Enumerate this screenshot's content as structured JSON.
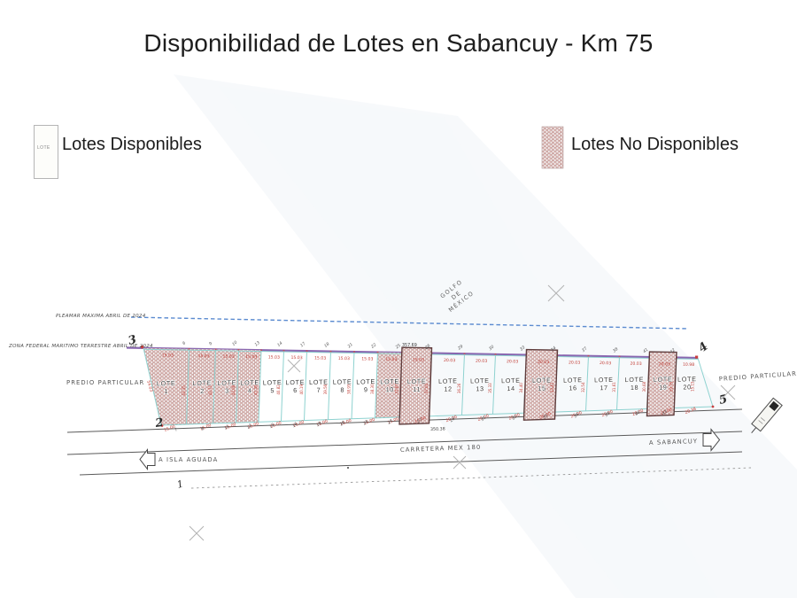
{
  "title": "Disponibilidad de Lotes en Sabancuy - Km 75",
  "legend": {
    "available_label": "Lotes Disponibles",
    "available_swatch_text": "LOTE",
    "unavailable_label": "Lotes No Disponibles"
  },
  "colors": {
    "hatch_fill": "#dcb9b6",
    "hatch_ring": "#ad7d7a",
    "purple_line": "#7e57a8",
    "cyan_line": "#8ed2d0",
    "red_dim": "#c23b33",
    "blue_dashed": "#5b8bd0"
  },
  "map": {
    "labels": {
      "pleamar": "PLEAMAR MAXIMA ABRIL DE 2024",
      "zofemat": "ZONA FEDERAL MARITIMO TERRESTRE ABRIL DE 2024",
      "predio_left": "PREDIO PARTICULAR",
      "predio_right": "PREDIO PARTICULAR",
      "golfo": [
        "GOLFO",
        "DE",
        "MÉXICO"
      ],
      "carretera": "CARRETERA MEX 180",
      "to_isla": "A ISLA AGUADA",
      "to_sabancuy": "A SABANCUY",
      "total_top": "357.69",
      "total_bottom": "350.38",
      "left_depth": "54.03",
      "lote_word": "LOTE"
    },
    "point_labels": [
      "1",
      "2",
      "3",
      "4",
      "5"
    ],
    "bordered_lots": [
      11,
      15,
      19
    ],
    "vertices_top": [
      "6",
      "9",
      "10",
      "13",
      "14",
      "17",
      "18",
      "21",
      "22",
      "25",
      "26",
      "29",
      "30",
      "33",
      "34",
      "37",
      "38",
      "41",
      "42"
    ],
    "vertices_bottom": [
      "7",
      "8",
      "11",
      "12",
      "15",
      "16",
      "19",
      "20",
      "23",
      "24",
      "27",
      "28",
      "31",
      "32",
      "35",
      "36",
      "39",
      "40",
      "43"
    ],
    "lots": [
      {
        "number": "1",
        "available": false,
        "front_top": "15.03",
        "front_bottom": "15.00",
        "depth": "43.35"
      },
      {
        "number": "2",
        "available": false,
        "front_top": "15.03",
        "front_bottom": "15.00",
        "depth": "42.71"
      },
      {
        "number": "3",
        "available": false,
        "front_top": "15.03",
        "front_bottom": "15.00",
        "depth": "42.08"
      },
      {
        "number": "4",
        "available": false,
        "front_top": "15.03",
        "front_bottom": "15.00",
        "depth": "41.45"
      },
      {
        "number": "5",
        "available": true,
        "front_top": "15.03",
        "front_bottom": "15.00",
        "depth": "40.82"
      },
      {
        "number": "6",
        "available": true,
        "front_top": "15.03",
        "front_bottom": "15.00",
        "depth": "40.19"
      },
      {
        "number": "7",
        "available": true,
        "front_top": "15.03",
        "front_bottom": "15.00",
        "depth": "39.56"
      },
      {
        "number": "8",
        "available": true,
        "front_top": "15.03",
        "front_bottom": "15.00",
        "depth": "38.93"
      },
      {
        "number": "9",
        "available": true,
        "front_top": "15.03",
        "front_bottom": "15.00",
        "depth": "38.30"
      },
      {
        "number": "10",
        "available": false,
        "front_top": "15.03",
        "front_bottom": "15.00",
        "depth": "37.67"
      },
      {
        "number": "11",
        "available": false,
        "front_top": "15.03",
        "front_bottom": "15.00",
        "depth": "37.04"
      },
      {
        "number": "12",
        "available": true,
        "front_top": "20.03",
        "front_bottom": "20.00",
        "depth": "36.26"
      },
      {
        "number": "13",
        "available": true,
        "front_top": "20.03",
        "front_bottom": "20.00",
        "depth": "35.33"
      },
      {
        "number": "14",
        "available": true,
        "front_top": "20.03",
        "front_bottom": "20.00",
        "depth": "34.40"
      },
      {
        "number": "15",
        "available": false,
        "front_top": "20.03",
        "front_bottom": "20.00",
        "depth": "33.47"
      },
      {
        "number": "16",
        "available": true,
        "front_top": "20.03",
        "front_bottom": "20.00",
        "depth": "32.54"
      },
      {
        "number": "17",
        "available": true,
        "front_top": "20.03",
        "front_bottom": "20.00",
        "depth": "31.61"
      },
      {
        "number": "18",
        "available": true,
        "front_top": "20.03",
        "front_bottom": "20.00",
        "depth": "30.68"
      },
      {
        "number": "19",
        "available": false,
        "front_top": "20.03",
        "front_bottom": "20.00",
        "depth": "29.75"
      },
      {
        "number": "20",
        "available": true,
        "front_top": "10.98",
        "front_bottom": "20.38",
        "depth": "15.15"
      }
    ]
  }
}
